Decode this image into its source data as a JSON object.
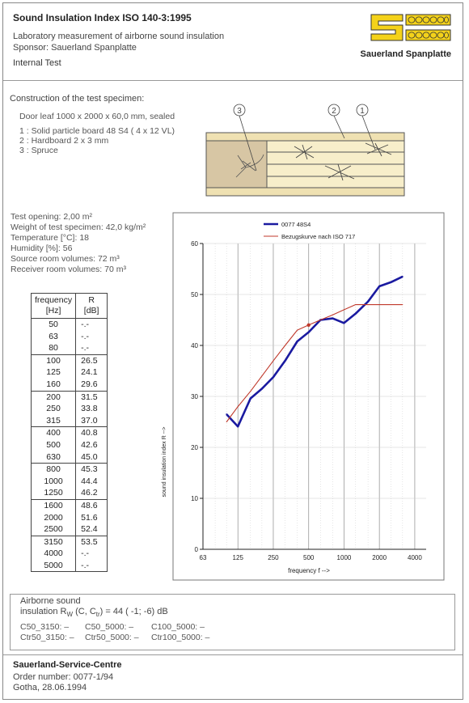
{
  "header": {
    "title": "Sound Insulation Index ISO 140-3:1995",
    "line1": "Laboratory measurement of airborne sound insulation",
    "line2": "Sponsor: Sauerland Spanplatte",
    "line3": "Internal Test",
    "logo_text": "Sauerland Spanplatte"
  },
  "construction": {
    "heading": "Construction of the test specimen:",
    "door": "Door leaf 1000 x 2000 x 60,0 mm, sealed",
    "items": [
      "1  :  Solid particle board 48 S4  ( 4 x 12 VL)",
      "2  :  Hardboard   2 x 3 mm",
      "3  :  Spruce"
    ],
    "callouts": [
      "3",
      "2",
      "1"
    ]
  },
  "conditions": [
    "Test opening:  2,00 m²",
    "Weight of test specimen:  42,0 kg/m²",
    "Temperature  [°C]: 18",
    "Humidity  [%]: 56",
    "Source room volumes: 72 m³",
    "Receiver room volumes: 70 m³"
  ],
  "table": {
    "head_freq": [
      "frequency",
      "[Hz]"
    ],
    "head_r": [
      "R",
      "[dB]"
    ],
    "rows": [
      [
        "50",
        "-.-"
      ],
      [
        "63",
        "-.-"
      ],
      [
        "80",
        "-.-"
      ],
      [
        "100",
        "26.5"
      ],
      [
        "125",
        "24.1"
      ],
      [
        "160",
        "29.6"
      ],
      [
        "200",
        "31.5"
      ],
      [
        "250",
        "33.8"
      ],
      [
        "315",
        "37.0"
      ],
      [
        "400",
        "40.8"
      ],
      [
        "500",
        "42.6"
      ],
      [
        "630",
        "45.0"
      ],
      [
        "800",
        "45.3"
      ],
      [
        "1000",
        "44.4"
      ],
      [
        "1250",
        "46.2"
      ],
      [
        "1600",
        "48.6"
      ],
      [
        "2000",
        "51.6"
      ],
      [
        "2500",
        "52.4"
      ],
      [
        "3150",
        "53.5"
      ],
      [
        "4000",
        "-.-"
      ],
      [
        "5000",
        "-.-"
      ]
    ]
  },
  "chart_data": {
    "type": "line",
    "xscale": "log",
    "xlim": [
      63,
      5000
    ],
    "ylim": [
      0,
      60
    ],
    "xticks": [
      "63",
      "125",
      "250",
      "500",
      "1000",
      "2000",
      "4000"
    ],
    "yticks": [
      "0",
      "10",
      "20",
      "30",
      "40",
      "50",
      "60"
    ],
    "xlabel": "frequency   f  -->",
    "ylabel": "sound insulation index   R  -->",
    "grid": true,
    "legend_position": "top-left",
    "series": [
      {
        "name": "0077  48S4",
        "color": "#1a1aa0",
        "x": [
          100,
          125,
          160,
          200,
          250,
          315,
          400,
          500,
          630,
          800,
          1000,
          1250,
          1600,
          2000,
          2500,
          3150
        ],
        "y": [
          26.5,
          24.1,
          29.6,
          31.5,
          33.8,
          37.0,
          40.8,
          42.6,
          45.0,
          45.3,
          44.4,
          46.2,
          48.6,
          51.6,
          52.4,
          53.5
        ]
      },
      {
        "name": "Bezugskurve nach ISO 717",
        "color": "#c0392b",
        "x": [
          100,
          125,
          160,
          200,
          250,
          315,
          400,
          500,
          630,
          800,
          1000,
          1250,
          1600,
          2000,
          2500,
          3150
        ],
        "y": [
          25,
          28,
          31,
          34,
          37,
          40,
          43,
          44,
          45,
          46,
          47,
          48,
          48,
          48,
          48,
          48
        ]
      }
    ]
  },
  "airborne": {
    "line1": "Airborne sound",
    "line2": "insulation R",
    "line2_sub": "W",
    "line2_rest": " (C, C",
    "line2_sub2": "tr",
    "line2_end": ") = 44 ( -1; -6) dB",
    "row1": [
      "C50_3150: –",
      "C50_5000: –",
      "C100_5000:  –"
    ],
    "row2": [
      "Ctr50_3150: –",
      "Ctr50_5000: –",
      "Ctr100_5000:  –"
    ]
  },
  "footer": {
    "centre": "Sauerland-Service-Centre",
    "order": "Order number: 0077-1/94",
    "place_date": "Gotha, 28.06.1994"
  }
}
